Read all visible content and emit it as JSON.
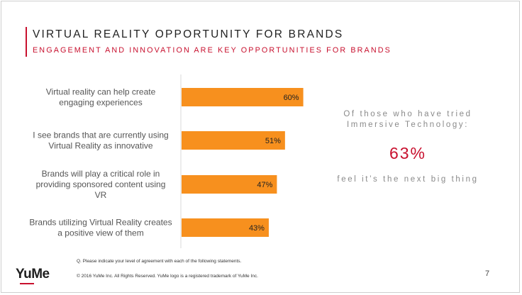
{
  "slide": {
    "title": "VIRTUAL REALITY OPPORTUNITY FOR BRANDS",
    "subtitle": "ENGAGEMENT AND INNOVATION ARE KEY OPPORTUNITIES FOR BRANDS",
    "question": "Q. Please indicate your level of agreement with each of the following statements.",
    "copyright": "© 2016 YuMe Inc. All Rights Reserved. YuMe logo is a registered trademark of YuMe Inc.",
    "logo_text": "YuMe",
    "page_number": "7",
    "accent_color": "#c8102e",
    "bar_color": "#f7901e"
  },
  "callout": {
    "intro_line1": "Of those who have tried",
    "intro_line2": "Immersive Technology:",
    "stat": "63%",
    "note": "feel it’s the next big thing"
  },
  "chart_data": {
    "type": "bar",
    "orientation": "horizontal",
    "categories": [
      [
        "Virtual reality can help create",
        "engaging experiences"
      ],
      [
        "I see brands that are currently using",
        "Virtual Reality as innovative"
      ],
      [
        "Brands will play a critical role in",
        "providing sponsored content using",
        "VR"
      ],
      [
        "Brands utilizing Virtual Reality creates",
        "a positive view of them"
      ]
    ],
    "values": [
      60,
      51,
      47,
      43
    ],
    "value_labels": [
      "60%",
      "51%",
      "47%",
      "43%"
    ],
    "xlim": [
      0,
      100
    ],
    "grid": false,
    "legend": "none"
  }
}
